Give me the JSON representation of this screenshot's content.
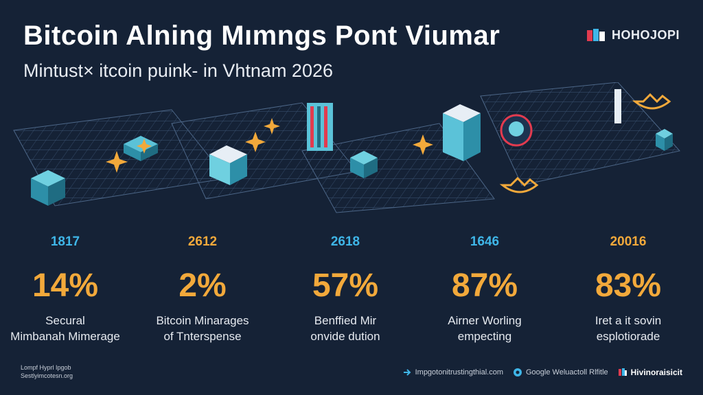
{
  "header": {
    "title": "Bitcoin Alning Mımngs Pont Viumar",
    "subtitle": "Mintust× itcoin puink- in Vhtnam 2026",
    "brand": "HOHOJOPI"
  },
  "stats": [
    {
      "year": "1817",
      "year_color": "#3fb6e8",
      "percent": "14%",
      "label_line1": "Secural",
      "label_line2": "Mimbanah Mimerage"
    },
    {
      "year": "2612",
      "year_color": "#f2a93b",
      "percent": "2%",
      "label_line1": "Bitcoin Minarages",
      "label_line2": "of Tnterspense"
    },
    {
      "year": "2618",
      "year_color": "#3fb6e8",
      "percent": "57%",
      "label_line1": "Benffied Mir",
      "label_line2": "onvide dution"
    },
    {
      "year": "1646",
      "year_color": "#3fb6e8",
      "percent": "87%",
      "label_line1": "Airner Worling",
      "label_line2": "empecting"
    },
    {
      "year": "20016",
      "year_color": "#f2a93b",
      "percent": "83%",
      "label_line1": "Iret a it sovin",
      "label_line2": "esplotiorade"
    }
  ],
  "footer": {
    "left_line1": "Lompf Hyprl Ipgob",
    "left_line2": "Sestlyimcotesn.org",
    "right_link1": "Impgotonitrustingthial.com",
    "right_link2": "Google Weluactoll Rlfitle",
    "right_brand": "Hivinoraisicit"
  },
  "colors": {
    "background": "#152236",
    "accent_orange": "#f2a93b",
    "accent_cyan": "#3fb6e8",
    "grid": "#3a5272"
  }
}
